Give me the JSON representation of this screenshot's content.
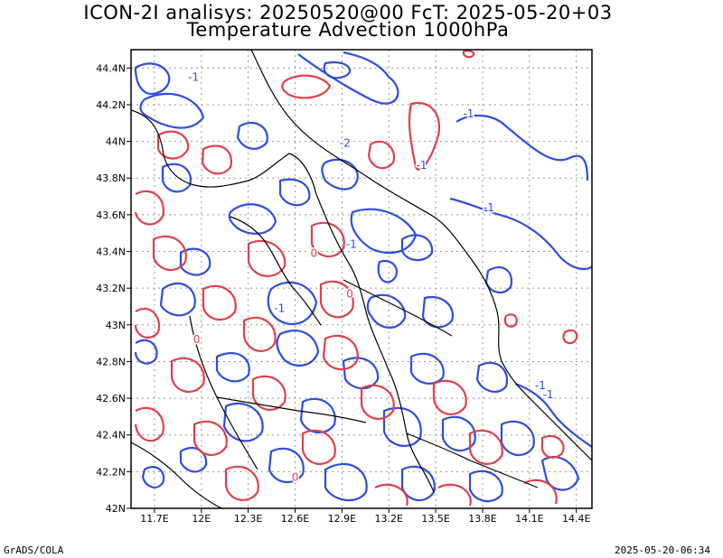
{
  "title_line1": "ICON-2I analisys: 20250520@00 FcT: 2025-05-20+03",
  "title_line2": "Temperature Advection 1000hPa",
  "credit": "GrADS/COLA",
  "timestamp": "2025-05-20-06:34",
  "colors": {
    "positive": "#e0404a",
    "negative": "#2d4de0",
    "coast": "#000000",
    "grid": "#9a9a9a"
  },
  "lon_ticks": [
    "11.7E",
    "12E",
    "12.3E",
    "12.6E",
    "12.9E",
    "13.2E",
    "13.5E",
    "13.8E",
    "14.1E",
    "14.4E"
  ],
  "lat_ticks": [
    "42N",
    "42.2N",
    "42.4N",
    "42.6N",
    "42.8N",
    "43N",
    "43.2N",
    "43.4N",
    "43.6N",
    "43.8N",
    "44N",
    "44.2N",
    "44.4N"
  ],
  "lon_values": [
    11.7,
    12.0,
    12.3,
    12.6,
    12.9,
    13.2,
    13.5,
    13.8,
    14.1,
    14.4
  ],
  "lat_values": [
    42.0,
    42.2,
    42.4,
    42.6,
    42.8,
    43.0,
    43.2,
    43.4,
    43.6,
    43.8,
    44.0,
    44.2,
    44.4
  ],
  "extent": {
    "lon_min": 11.55,
    "lon_max": 14.5,
    "lat_min": 42.0,
    "lat_max": 44.5
  },
  "contour_labels": [
    {
      "text": "-1",
      "lon": 11.95,
      "lat": 44.33,
      "sign": "neg"
    },
    {
      "text": "-1",
      "lon": 13.71,
      "lat": 44.13,
      "sign": "neg"
    },
    {
      "text": "-1",
      "lon": 13.41,
      "lat": 43.85,
      "sign": "neg"
    },
    {
      "text": "-1",
      "lon": 13.84,
      "lat": 43.62,
      "sign": "neg"
    },
    {
      "text": "-2",
      "lon": 12.92,
      "lat": 43.97,
      "sign": "neg"
    },
    {
      "text": "-1",
      "lon": 12.96,
      "lat": 43.42,
      "sign": "neg"
    },
    {
      "text": "-1",
      "lon": 12.5,
      "lat": 43.07,
      "sign": "neg"
    },
    {
      "text": "-1",
      "lon": 14.17,
      "lat": 42.65,
      "sign": "neg"
    },
    {
      "text": "-1",
      "lon": 14.22,
      "lat": 42.6,
      "sign": "neg"
    },
    {
      "text": "0",
      "lon": 12.95,
      "lat": 43.15,
      "sign": "pos"
    },
    {
      "text": "0",
      "lon": 12.72,
      "lat": 43.37,
      "sign": "pos"
    },
    {
      "text": "0",
      "lon": 11.97,
      "lat": 42.9,
      "sign": "pos"
    },
    {
      "text": "0",
      "lon": 12.6,
      "lat": 42.15,
      "sign": "pos"
    }
  ]
}
